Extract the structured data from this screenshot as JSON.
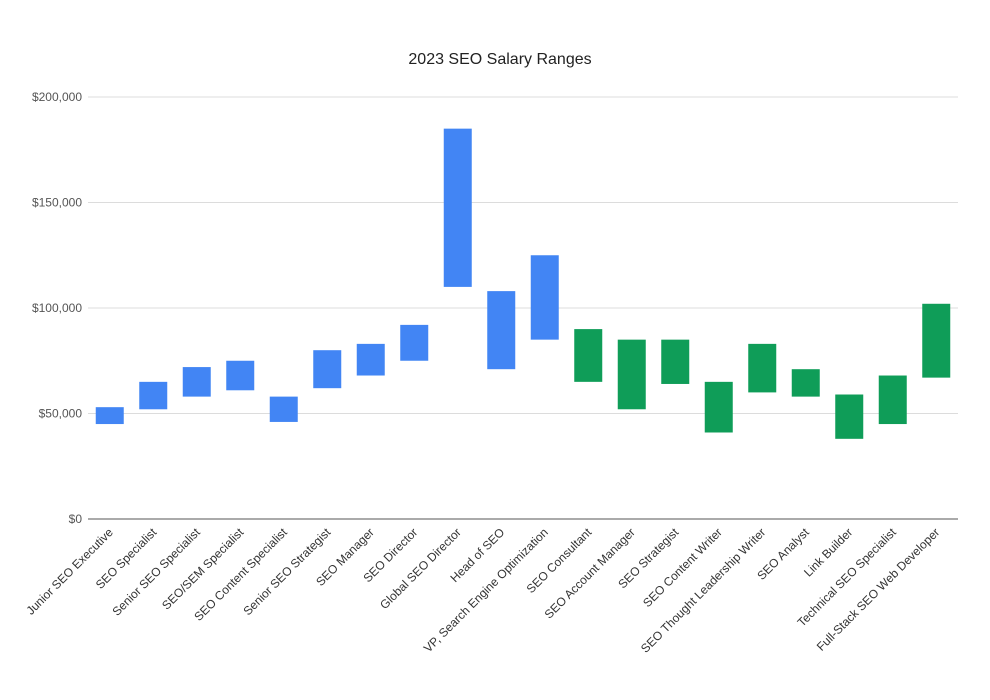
{
  "chart_data": {
    "type": "bar",
    "subtype": "floating-range",
    "title": "2023 SEO Salary Ranges",
    "xlabel": "",
    "ylabel": "",
    "ylim": [
      0,
      200000
    ],
    "yticks": [
      {
        "value": 0,
        "label": "$0"
      },
      {
        "value": 50000,
        "label": "$50,000"
      },
      {
        "value": 100000,
        "label": "$100,000"
      },
      {
        "value": 150000,
        "label": "$150,000"
      },
      {
        "value": 200000,
        "label": "$200,000"
      }
    ],
    "grid": true,
    "legend": "none",
    "colors": {
      "blue": "#4285F4",
      "green": "#0F9D58"
    },
    "bars": [
      {
        "category": "Junior SEO Executive",
        "low": 45000,
        "high": 53000,
        "color": "blue"
      },
      {
        "category": "SEO Specialist",
        "low": 52000,
        "high": 65000,
        "color": "blue"
      },
      {
        "category": "Senior SEO Specialist",
        "low": 58000,
        "high": 72000,
        "color": "blue"
      },
      {
        "category": "SEO/SEM Specialist",
        "low": 61000,
        "high": 75000,
        "color": "blue"
      },
      {
        "category": "SEO Content Specialist",
        "low": 46000,
        "high": 58000,
        "color": "blue"
      },
      {
        "category": "Senior SEO Strategist",
        "low": 62000,
        "high": 80000,
        "color": "blue"
      },
      {
        "category": "SEO Manager",
        "low": 68000,
        "high": 83000,
        "color": "blue"
      },
      {
        "category": "SEO Director",
        "low": 75000,
        "high": 92000,
        "color": "blue"
      },
      {
        "category": "Global SEO Director",
        "low": 110000,
        "high": 185000,
        "color": "blue"
      },
      {
        "category": "Head of SEO",
        "low": 71000,
        "high": 108000,
        "color": "blue"
      },
      {
        "category": "VP, Search Engine Optimization",
        "low": 85000,
        "high": 125000,
        "color": "blue"
      },
      {
        "category": "SEO Consultant",
        "low": 65000,
        "high": 90000,
        "color": "green"
      },
      {
        "category": "SEO Account Manager",
        "low": 52000,
        "high": 85000,
        "color": "green"
      },
      {
        "category": "SEO Strategist",
        "low": 64000,
        "high": 85000,
        "color": "green"
      },
      {
        "category": "SEO Content Writer",
        "low": 41000,
        "high": 65000,
        "color": "green"
      },
      {
        "category": "SEO Thought Leadership Writer",
        "low": 60000,
        "high": 83000,
        "color": "green"
      },
      {
        "category": "SEO Analyst",
        "low": 58000,
        "high": 71000,
        "color": "green"
      },
      {
        "category": "Link Builder",
        "low": 38000,
        "high": 59000,
        "color": "green"
      },
      {
        "category": "Technical SEO Specialist",
        "low": 45000,
        "high": 68000,
        "color": "green"
      },
      {
        "category": "Full-Stack SEO Web Developer",
        "low": 67000,
        "high": 102000,
        "color": "green"
      }
    ]
  }
}
